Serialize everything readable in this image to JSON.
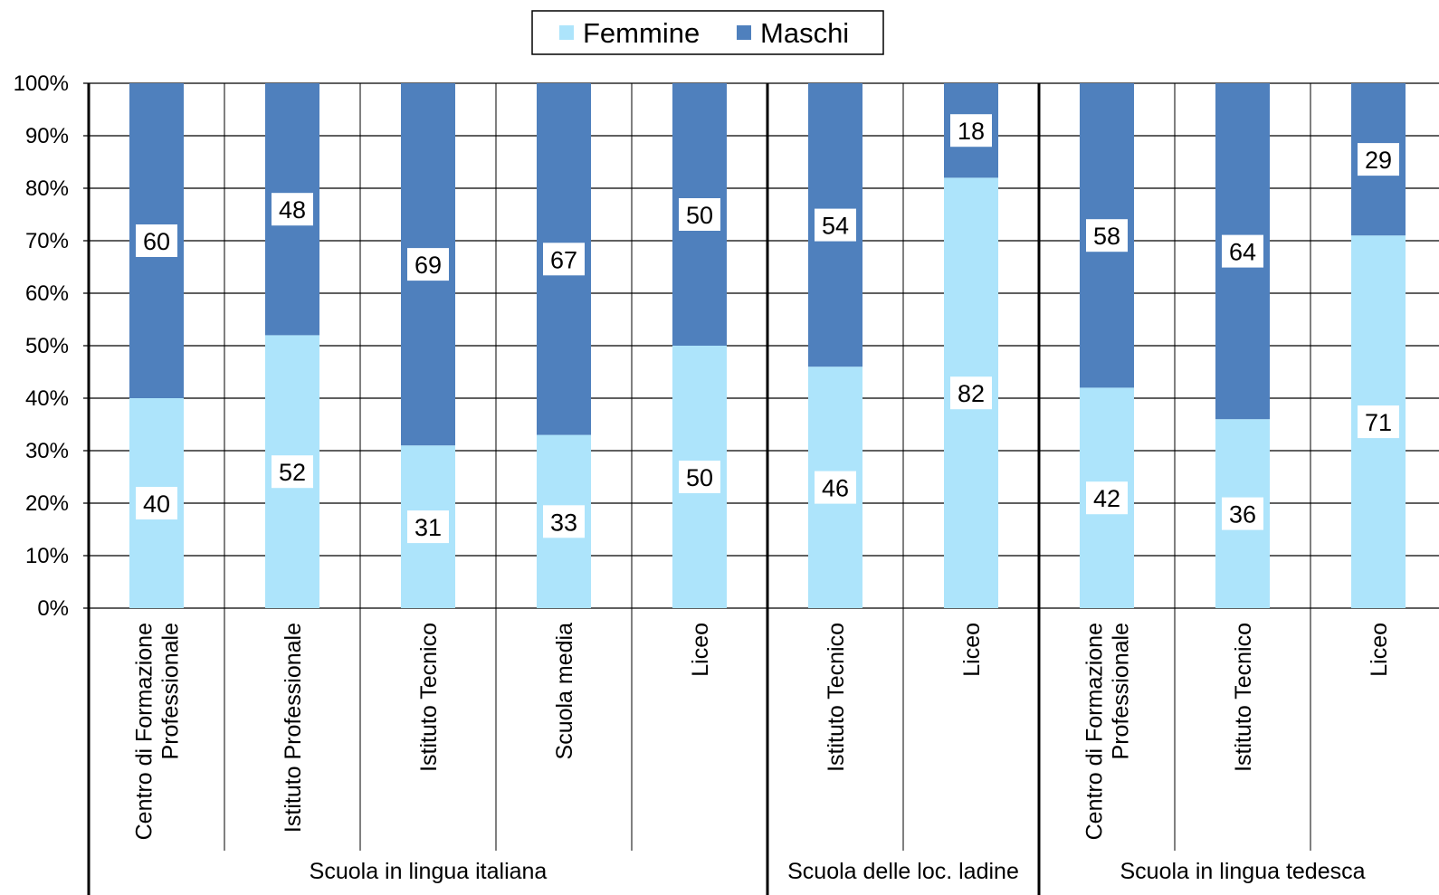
{
  "chart_data": {
    "type": "bar",
    "stacked": true,
    "percent_stacked": true,
    "title": "",
    "xlabel": "",
    "ylabel": "",
    "ylim": [
      0,
      100
    ],
    "y_ticks": [
      "0%",
      "10%",
      "20%",
      "30%",
      "40%",
      "50%",
      "60%",
      "70%",
      "80%",
      "90%",
      "100%"
    ],
    "grid": true,
    "legend_position": "top-center",
    "categories": [
      "Centro di Formazione Professionale",
      "Istituto Professionale",
      "Istituto Tecnico",
      "Scuola media",
      "Liceo",
      "Istituto Tecnico",
      "Liceo",
      "Centro di Formazione Professionale",
      "Istituto Tecnico",
      "Liceo"
    ],
    "category_label_lines": [
      [
        "Centro di Formazione",
        "Professionale"
      ],
      [
        "Istituto Professionale"
      ],
      [
        "Istituto Tecnico"
      ],
      [
        "Scuola media"
      ],
      [
        "Liceo"
      ],
      [
        "Istituto Tecnico"
      ],
      [
        "Liceo"
      ],
      [
        "Centro di Formazione",
        "Professionale"
      ],
      [
        "Istituto Tecnico"
      ],
      [
        "Liceo"
      ]
    ],
    "groups": [
      {
        "label": "Scuola in lingua italiana",
        "start": 0,
        "count": 5
      },
      {
        "label": "Scuola delle loc. ladine",
        "start": 5,
        "count": 2
      },
      {
        "label": "Scuola in lingua tedesca",
        "start": 7,
        "count": 3
      }
    ],
    "series": [
      {
        "name": "Femmine",
        "color": "#ade4fb",
        "values": [
          40,
          52,
          31,
          33,
          50,
          46,
          82,
          42,
          36,
          71
        ]
      },
      {
        "name": "Maschi",
        "color": "#4f80bd",
        "values": [
          60,
          48,
          69,
          67,
          50,
          54,
          18,
          58,
          64,
          29
        ]
      }
    ]
  }
}
